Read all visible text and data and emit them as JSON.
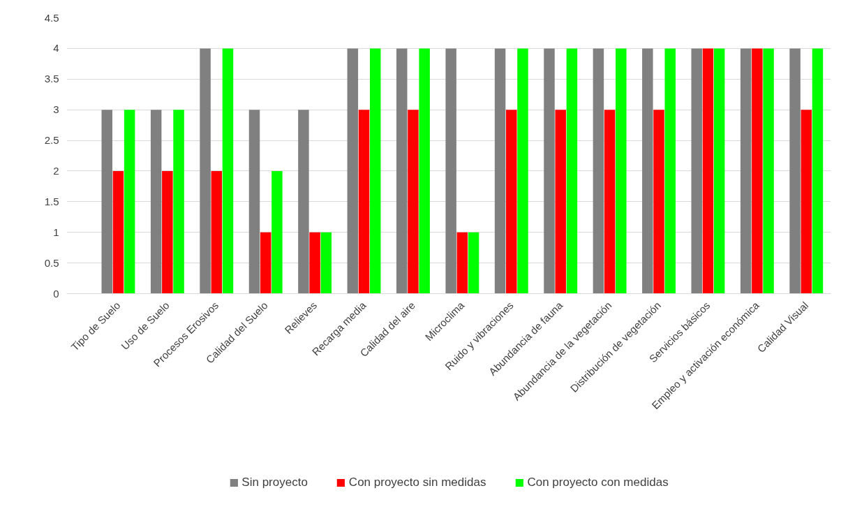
{
  "chart_data": {
    "type": "bar",
    "categories": [
      "Tipo de Suelo",
      "Uso de Suelo",
      "Procesos Erosivos",
      "Calidad del Suelo",
      "Relieves",
      "Recarga media",
      "Calidad del aire",
      "Microclima",
      "Ruido y vibraciones",
      "Abundancia de fauna",
      "Abundancia de la vegetación",
      "Distribución de vegetación",
      "Servicios básicos",
      "Empleo y activación económica",
      "Calidad Visual"
    ],
    "series": [
      {
        "name": "Sin proyecto",
        "color": "#808080",
        "values": [
          3,
          3,
          4,
          3,
          3,
          4,
          4,
          4,
          4,
          4,
          4,
          4,
          4,
          4,
          4
        ]
      },
      {
        "name": "Con proyecto sin medidas",
        "color": "#ff0000",
        "values": [
          2,
          2,
          2,
          1,
          1,
          3,
          3,
          1,
          3,
          3,
          3,
          3,
          4,
          4,
          3
        ]
      },
      {
        "name": "Con proyecto con medidas",
        "color": "#00ff00",
        "values": [
          3,
          3,
          4,
          2,
          1,
          4,
          4,
          1,
          4,
          4,
          4,
          4,
          4,
          4,
          4
        ]
      }
    ],
    "ylim": [
      0,
      4.5
    ],
    "yticks": [
      0,
      0.5,
      1,
      1.5,
      2,
      2.5,
      3,
      3.5,
      4,
      4.5
    ],
    "grid": "y",
    "legend": "bottom"
  }
}
